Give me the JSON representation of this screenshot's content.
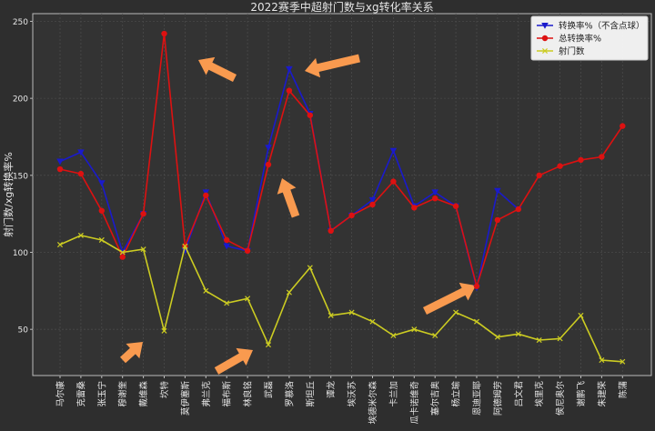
{
  "chart_data": {
    "type": "line",
    "title": "2022赛季中超射门数与xg转化率关系",
    "xlabel": "",
    "ylabel": "射门数/xg转换率%",
    "ylim": [
      20,
      255
    ],
    "yticks": [
      50,
      100,
      150,
      200,
      250
    ],
    "grid": true,
    "legend_position": "top-right",
    "categories": [
      "马尔康",
      "克雷桑",
      "张玉宁",
      "穆谢奎",
      "戴维森",
      "坎特",
      "莫伊塞斯",
      "弗兰克",
      "福布斯",
      "林良铭",
      "武磊",
      "罗慕洛",
      "斯坦丘",
      "谭龙",
      "埃沃苏",
      "埃德米尔森",
      "卡兰加",
      "瓜卡诺维奇",
      "塞尔吉奥",
      "杨立瑜",
      "恩迪亚耶",
      "阿德姆劳",
      "吕文君",
      "埃里克",
      "侯尼奥尔",
      "谢鹏飞",
      "朱建荣",
      "陈蒲"
    ],
    "series": [
      {
        "name": "转换率%（不含点球）",
        "color": "#1a1acc",
        "marker": "triangle-down",
        "values": [
          159,
          165,
          145,
          100,
          125,
          null,
          101,
          139,
          104,
          101,
          168,
          219,
          190,
          114,
          124,
          134,
          166,
          130,
          139,
          130,
          77,
          140,
          128,
          null,
          null,
          null,
          null,
          null
        ]
      },
      {
        "name": "总转换率%",
        "color": "#dd1111",
        "marker": "circle",
        "values": [
          154,
          151,
          127,
          97,
          125,
          242,
          104,
          137,
          108,
          101,
          157,
          205,
          189,
          114,
          124,
          131,
          146,
          129,
          135,
          130,
          78,
          121,
          128,
          150,
          156,
          160,
          162,
          182
        ]
      },
      {
        "name": "射门数",
        "color": "#cccc22",
        "marker": "x",
        "values": [
          105,
          111,
          108,
          100,
          102,
          49,
          104,
          75,
          67,
          70,
          40,
          74,
          90,
          59,
          61,
          55,
          46,
          50,
          46,
          61,
          55,
          45,
          47,
          43,
          44,
          59,
          30,
          29
        ]
      }
    ]
  },
  "colors": {
    "background": "#2e2e2e",
    "axes_face": "#333333",
    "grid": "#4a4a4a",
    "text": "#e6e6e6",
    "arrow": "#f99a4f"
  }
}
